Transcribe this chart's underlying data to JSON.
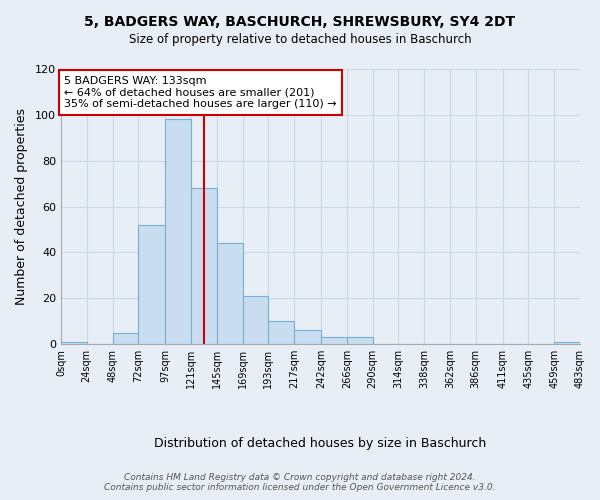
{
  "title": "5, BADGERS WAY, BASCHURCH, SHREWSBURY, SY4 2DT",
  "subtitle": "Size of property relative to detached houses in Baschurch",
  "xlabel": "Distribution of detached houses by size in Baschurch",
  "ylabel": "Number of detached properties",
  "bar_color": "#c8ddef",
  "bar_edge_color": "#7aafd4",
  "bin_edges": [
    0,
    24,
    48,
    72,
    97,
    121,
    145,
    169,
    193,
    217,
    242,
    266,
    290,
    314,
    338,
    362,
    386,
    411,
    435,
    459,
    483
  ],
  "bin_labels": [
    "0sqm",
    "24sqm",
    "48sqm",
    "72sqm",
    "97sqm",
    "121sqm",
    "145sqm",
    "169sqm",
    "193sqm",
    "217sqm",
    "242sqm",
    "266sqm",
    "290sqm",
    "314sqm",
    "338sqm",
    "362sqm",
    "386sqm",
    "411sqm",
    "435sqm",
    "459sqm",
    "483sqm"
  ],
  "counts": [
    1,
    0,
    5,
    52,
    98,
    68,
    44,
    21,
    10,
    6,
    3,
    3,
    0,
    0,
    0,
    0,
    0,
    0,
    0,
    1
  ],
  "property_size": 133,
  "property_line_color": "#cc0000",
  "annotation_title": "5 BADGERS WAY: 133sqm",
  "annotation_line1": "← 64% of detached houses are smaller (201)",
  "annotation_line2": "35% of semi-detached houses are larger (110) →",
  "annotation_box_color": "#ffffff",
  "annotation_box_edge": "#cc0000",
  "ylim": [
    0,
    120
  ],
  "yticks": [
    0,
    20,
    40,
    60,
    80,
    100,
    120
  ],
  "footer_line1": "Contains HM Land Registry data © Crown copyright and database right 2024.",
  "footer_line2": "Contains public sector information licensed under the Open Government Licence v3.0.",
  "background_color": "#e8eef5",
  "plot_bg_color": "#e8eef5",
  "grid_color": "#c8d8e8"
}
